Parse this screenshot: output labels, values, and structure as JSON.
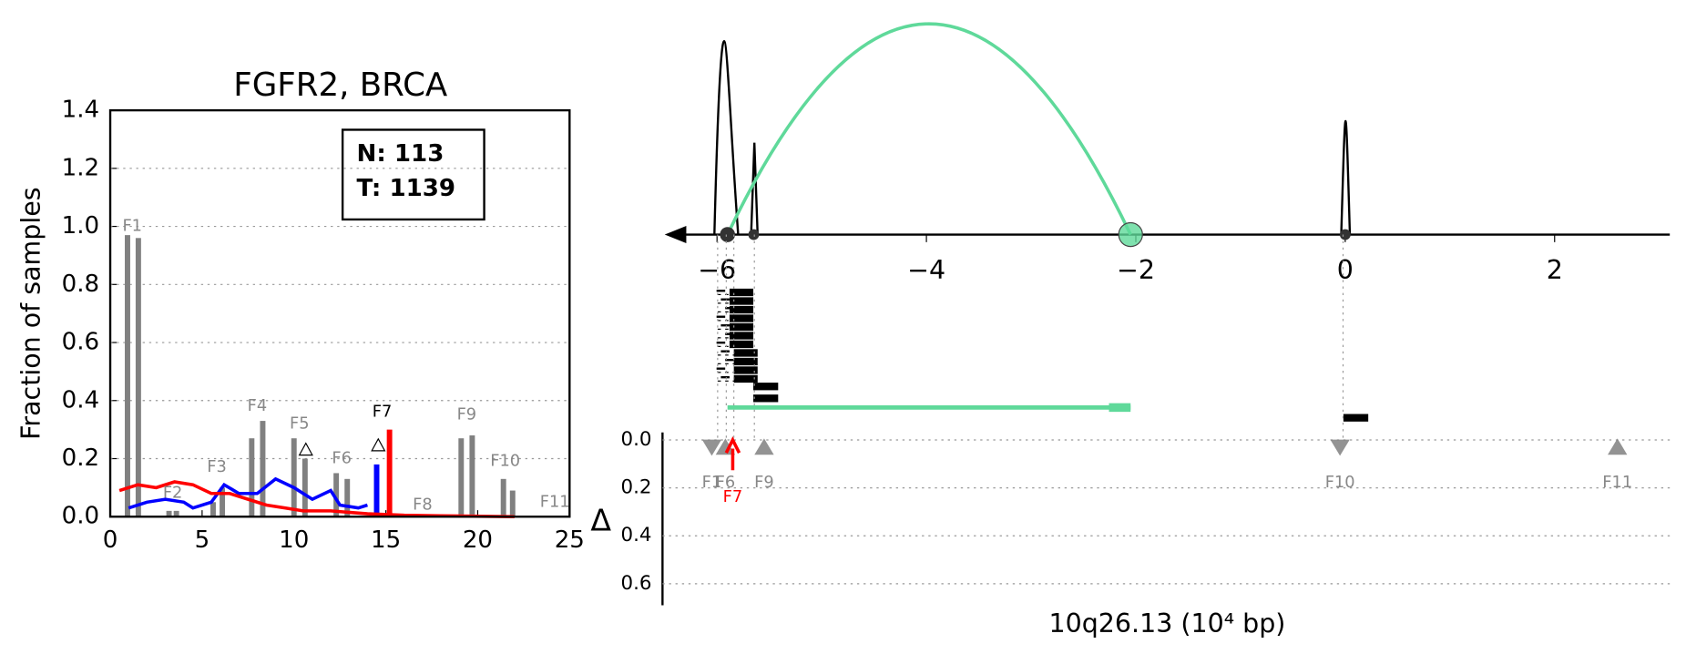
{
  "chart_data": [
    {
      "type": "bar",
      "title": "FGFR2, BRCA",
      "ylabel": "Fraction of samples",
      "annotation": [
        "N: 113",
        "T: 1139"
      ],
      "xlim": [
        0,
        25
      ],
      "xticks": [
        0,
        5,
        10,
        15,
        20,
        25
      ],
      "ylim": [
        0,
        1.4
      ],
      "yticks": [
        {
          "value": 0,
          "label": "0.0"
        },
        {
          "value": 0.2,
          "label": "0.2"
        },
        {
          "value": 0.4,
          "label": "0.4"
        },
        {
          "value": 0.6,
          "label": "0.6"
        },
        {
          "value": 0.8,
          "label": "0.8"
        },
        {
          "value": 1.0,
          "label": "1.0"
        },
        {
          "value": 1.2,
          "label": "1.2"
        },
        {
          "value": 1.4,
          "label": "1.4"
        }
      ],
      "grid": true,
      "bars": [
        {
          "color": "#808080",
          "x": [
            0.94,
            1.53,
            3.2,
            3.6,
            5.6,
            6.1,
            7.7,
            8.3,
            10.0,
            10.6,
            12.3,
            12.9,
            19.1,
            19.7,
            21.4,
            21.9
          ],
          "values": [
            0.97,
            0.96,
            0.02,
            0.02,
            0.05,
            0.1,
            0.27,
            0.33,
            0.27,
            0.2,
            0.15,
            0.13,
            0.27,
            0.28,
            0.13,
            0.09
          ]
        },
        {
          "color": "#0000ff",
          "x": [
            14.5
          ],
          "values": [
            0.18
          ]
        },
        {
          "color": "#ff0000",
          "x": [
            15.2
          ],
          "values": [
            0.3
          ]
        }
      ],
      "lines": [
        {
          "color": "#0000ff",
          "x": [
            1,
            2,
            3,
            4,
            4.5,
            5.5,
            6.2,
            7,
            8,
            9,
            10,
            11,
            12,
            12.5,
            13.5,
            14
          ],
          "values": [
            0.03,
            0.05,
            0.06,
            0.05,
            0.03,
            0.05,
            0.11,
            0.08,
            0.08,
            0.13,
            0.1,
            0.06,
            0.09,
            0.04,
            0.03,
            0.04
          ]
        },
        {
          "color": "#ff0000",
          "x": [
            0.5,
            1.5,
            2.5,
            3.5,
            4.5,
            5.5,
            6.5,
            7.5,
            8.5,
            9.5,
            10.5,
            12,
            14,
            16,
            18,
            22
          ],
          "values": [
            0.09,
            0.11,
            0.1,
            0.12,
            0.11,
            0.08,
            0.08,
            0.06,
            0.04,
            0.03,
            0.02,
            0.02,
            0.01,
            0.005,
            0.003,
            0
          ]
        }
      ],
      "features": [
        "F1",
        "F2",
        "F3",
        "F4",
        "F5",
        "F6",
        "F7",
        "F8",
        "F9",
        "F10",
        "F11"
      ]
    },
    {
      "type": "locus",
      "xlabel": "10q26.13 (10⁴ bp)",
      "ylabel": "Δ",
      "xlim": [
        -6.5,
        3.1
      ],
      "xticks": [
        {
          "value": -6,
          "label": "−6"
        },
        {
          "value": -4,
          "label": "−4"
        },
        {
          "value": -2,
          "label": "−2"
        },
        0,
        2
      ],
      "ylim": [
        0,
        0.69
      ],
      "yticks": [
        {
          "value": 0,
          "label": "0.0"
        },
        {
          "value": 0.2,
          "label": "0.2"
        },
        {
          "value": 0.4,
          "label": "0.4"
        },
        {
          "value": 0.6,
          "label": "0.6"
        }
      ],
      "grid": true,
      "markers": {
        "color": "#808080",
        "x": [
          -6.05,
          -5.92,
          -5.55,
          -0.05,
          2.6
        ],
        "values": [
          0.03,
          0.03,
          0.03,
          0.03,
          0.03
        ],
        "direction": [
          "down",
          "up",
          "up",
          "down",
          "up"
        ],
        "labels": [
          "F1",
          "F6",
          "F9",
          "F10",
          "F11"
        ]
      },
      "highlight": {
        "x": -5.85,
        "label": "F7",
        "color": "#ff0000"
      },
      "junction": {
        "x": [
          -5.9,
          -2.05
        ],
        "color": "#5fd99a"
      }
    }
  ]
}
